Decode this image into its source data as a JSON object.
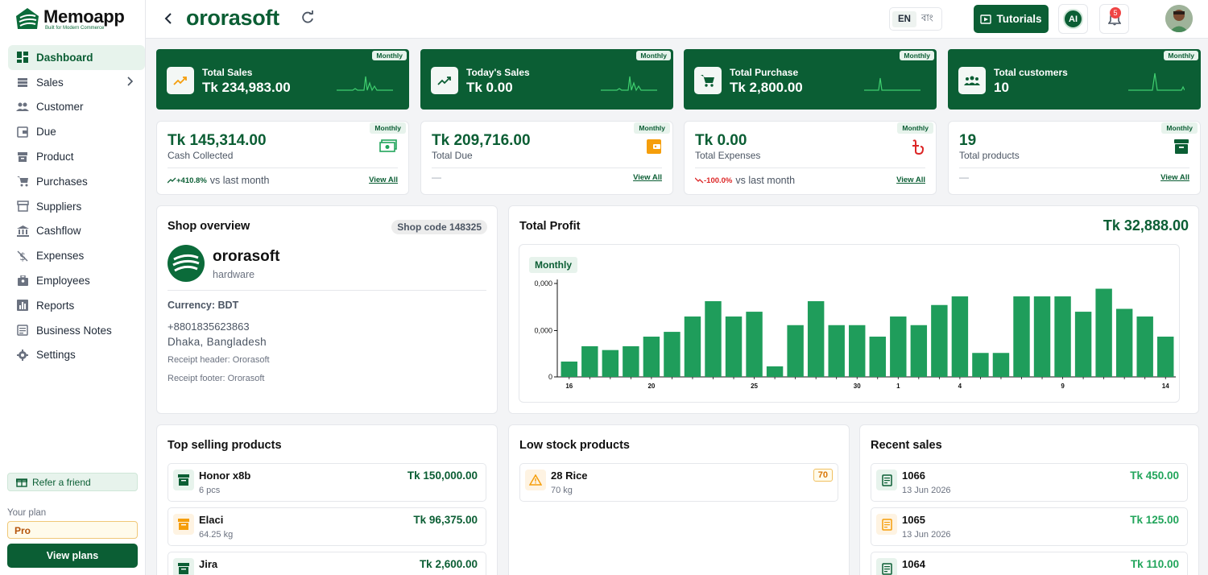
{
  "app": {
    "name": "Memoapp",
    "tagline": "Built for Modern Commerce"
  },
  "sidebar": {
    "items": [
      {
        "label": "Dashboard",
        "icon": "dashboard-icon",
        "active": true
      },
      {
        "label": "Sales",
        "icon": "sales-icon",
        "has_submenu": true
      },
      {
        "label": "Customer",
        "icon": "customer-icon"
      },
      {
        "label": "Due",
        "icon": "due-icon"
      },
      {
        "label": "Product",
        "icon": "product-icon"
      },
      {
        "label": "Purchases",
        "icon": "cart-icon"
      },
      {
        "label": "Suppliers",
        "icon": "store-icon"
      },
      {
        "label": "Cashflow",
        "icon": "bank-icon"
      },
      {
        "label": "Expenses",
        "icon": "money-off-icon"
      },
      {
        "label": "Employees",
        "icon": "employees-icon"
      },
      {
        "label": "Reports",
        "icon": "reports-icon"
      },
      {
        "label": "Business Notes",
        "icon": "notes-icon"
      },
      {
        "label": "Settings",
        "icon": "gear-icon"
      }
    ],
    "refer_label": "Refer a friend",
    "plan_label": "Your plan",
    "plan_value": "Pro",
    "view_plans_label": "View plans"
  },
  "header": {
    "shop_title": "ororasoft",
    "lang_en": "EN",
    "lang_bn": "বাং",
    "tutorials_label": "Tutorials",
    "ai_label": "AI",
    "notification_count": "5"
  },
  "stats": [
    {
      "label": "Total Sales",
      "value": "Tk 234,983.00",
      "badge": "Monthly",
      "icon": "trending-up-icon"
    },
    {
      "label": "Today's Sales",
      "value": "Tk 0.00",
      "badge": "Monthly",
      "icon": "trending-up-icon"
    },
    {
      "label": "Total Purchase",
      "value": "Tk 2,800.00",
      "badge": "Monthly",
      "icon": "cart-icon"
    },
    {
      "label": "Total customers",
      "value": "10",
      "badge": "Monthly",
      "icon": "group-icon"
    }
  ],
  "cards": [
    {
      "value": "Tk 145,314.00",
      "label": "Cash Collected",
      "badge": "Monthly",
      "trend_pct": "+410.8%",
      "trend_text": "vs last month",
      "trend_dir": "up",
      "view_all": "View All",
      "icon": "cash-icon"
    },
    {
      "value": "Tk 209,716.00",
      "label": "Total Due",
      "badge": "Monthly",
      "trend_text": "—",
      "view_all": "View All",
      "icon": "wallet-icon"
    },
    {
      "value": "Tk 0.00",
      "label": "Total Expenses",
      "badge": "Monthly",
      "trend_pct": "-100.0%",
      "trend_text": "vs last month",
      "trend_dir": "down",
      "view_all": "View All",
      "icon": "taka-icon"
    },
    {
      "value": "19",
      "label": "Total products",
      "badge": "Monthly",
      "trend_text": "—",
      "view_all": "View All",
      "icon": "archive-icon"
    }
  ],
  "shop_overview": {
    "title": "Shop overview",
    "shop_code": "Shop code 148325",
    "name": "ororasoft",
    "type": "hardware",
    "currency": "Currency: BDT",
    "phone": "+8801835623863",
    "address": "Dhaka, Bangladesh",
    "receipt_header": "Receipt header: Ororasoft",
    "receipt_footer": "Receipt footer: Ororasoft"
  },
  "profit": {
    "title": "Total Profit",
    "value": "Tk 32,888.00",
    "period": "Monthly"
  },
  "chart_data": {
    "type": "bar",
    "y_tick_labels": [
      "0,000",
      "0,000",
      "0"
    ],
    "x_tick_labels": [
      "16",
      "20",
      "25",
      "30",
      "1",
      "4",
      "9",
      "14"
    ],
    "x_tick_positions": [
      0,
      4,
      9,
      14,
      16,
      19,
      24,
      29
    ],
    "values": [
      16,
      32,
      28,
      32,
      42,
      47,
      63,
      79,
      63,
      68,
      11,
      54,
      79,
      54,
      54,
      42,
      63,
      54,
      75,
      84,
      25,
      25,
      84,
      84,
      84,
      68,
      92,
      71,
      63,
      42
    ],
    "ylim": [
      0,
      100
    ],
    "color": "#1f9d5b"
  },
  "top_selling": {
    "title": "Top selling products",
    "items": [
      {
        "name": "Honor x8b",
        "sub": "6 pcs",
        "amount": "Tk 150,000.00",
        "color": "green"
      },
      {
        "name": "Elaci",
        "sub": "64.25 kg",
        "amount": "Tk 96,375.00",
        "color": "orange"
      },
      {
        "name": "Jira",
        "sub": "",
        "amount": "Tk 2,600.00",
        "color": "green"
      }
    ]
  },
  "low_stock": {
    "title": "Low stock products",
    "items": [
      {
        "name": "28 Rice",
        "sub": "70 kg",
        "badge": "70"
      }
    ]
  },
  "recent_sales": {
    "title": "Recent sales",
    "items": [
      {
        "name": "1066",
        "sub": "13 Jun 2026",
        "amount": "Tk 450.00",
        "color": "green"
      },
      {
        "name": "1065",
        "sub": "13 Jun 2026",
        "amount": "Tk 125.00",
        "color": "orange"
      },
      {
        "name": "1064",
        "sub": "",
        "amount": "Tk 110.00",
        "color": "green"
      }
    ]
  }
}
